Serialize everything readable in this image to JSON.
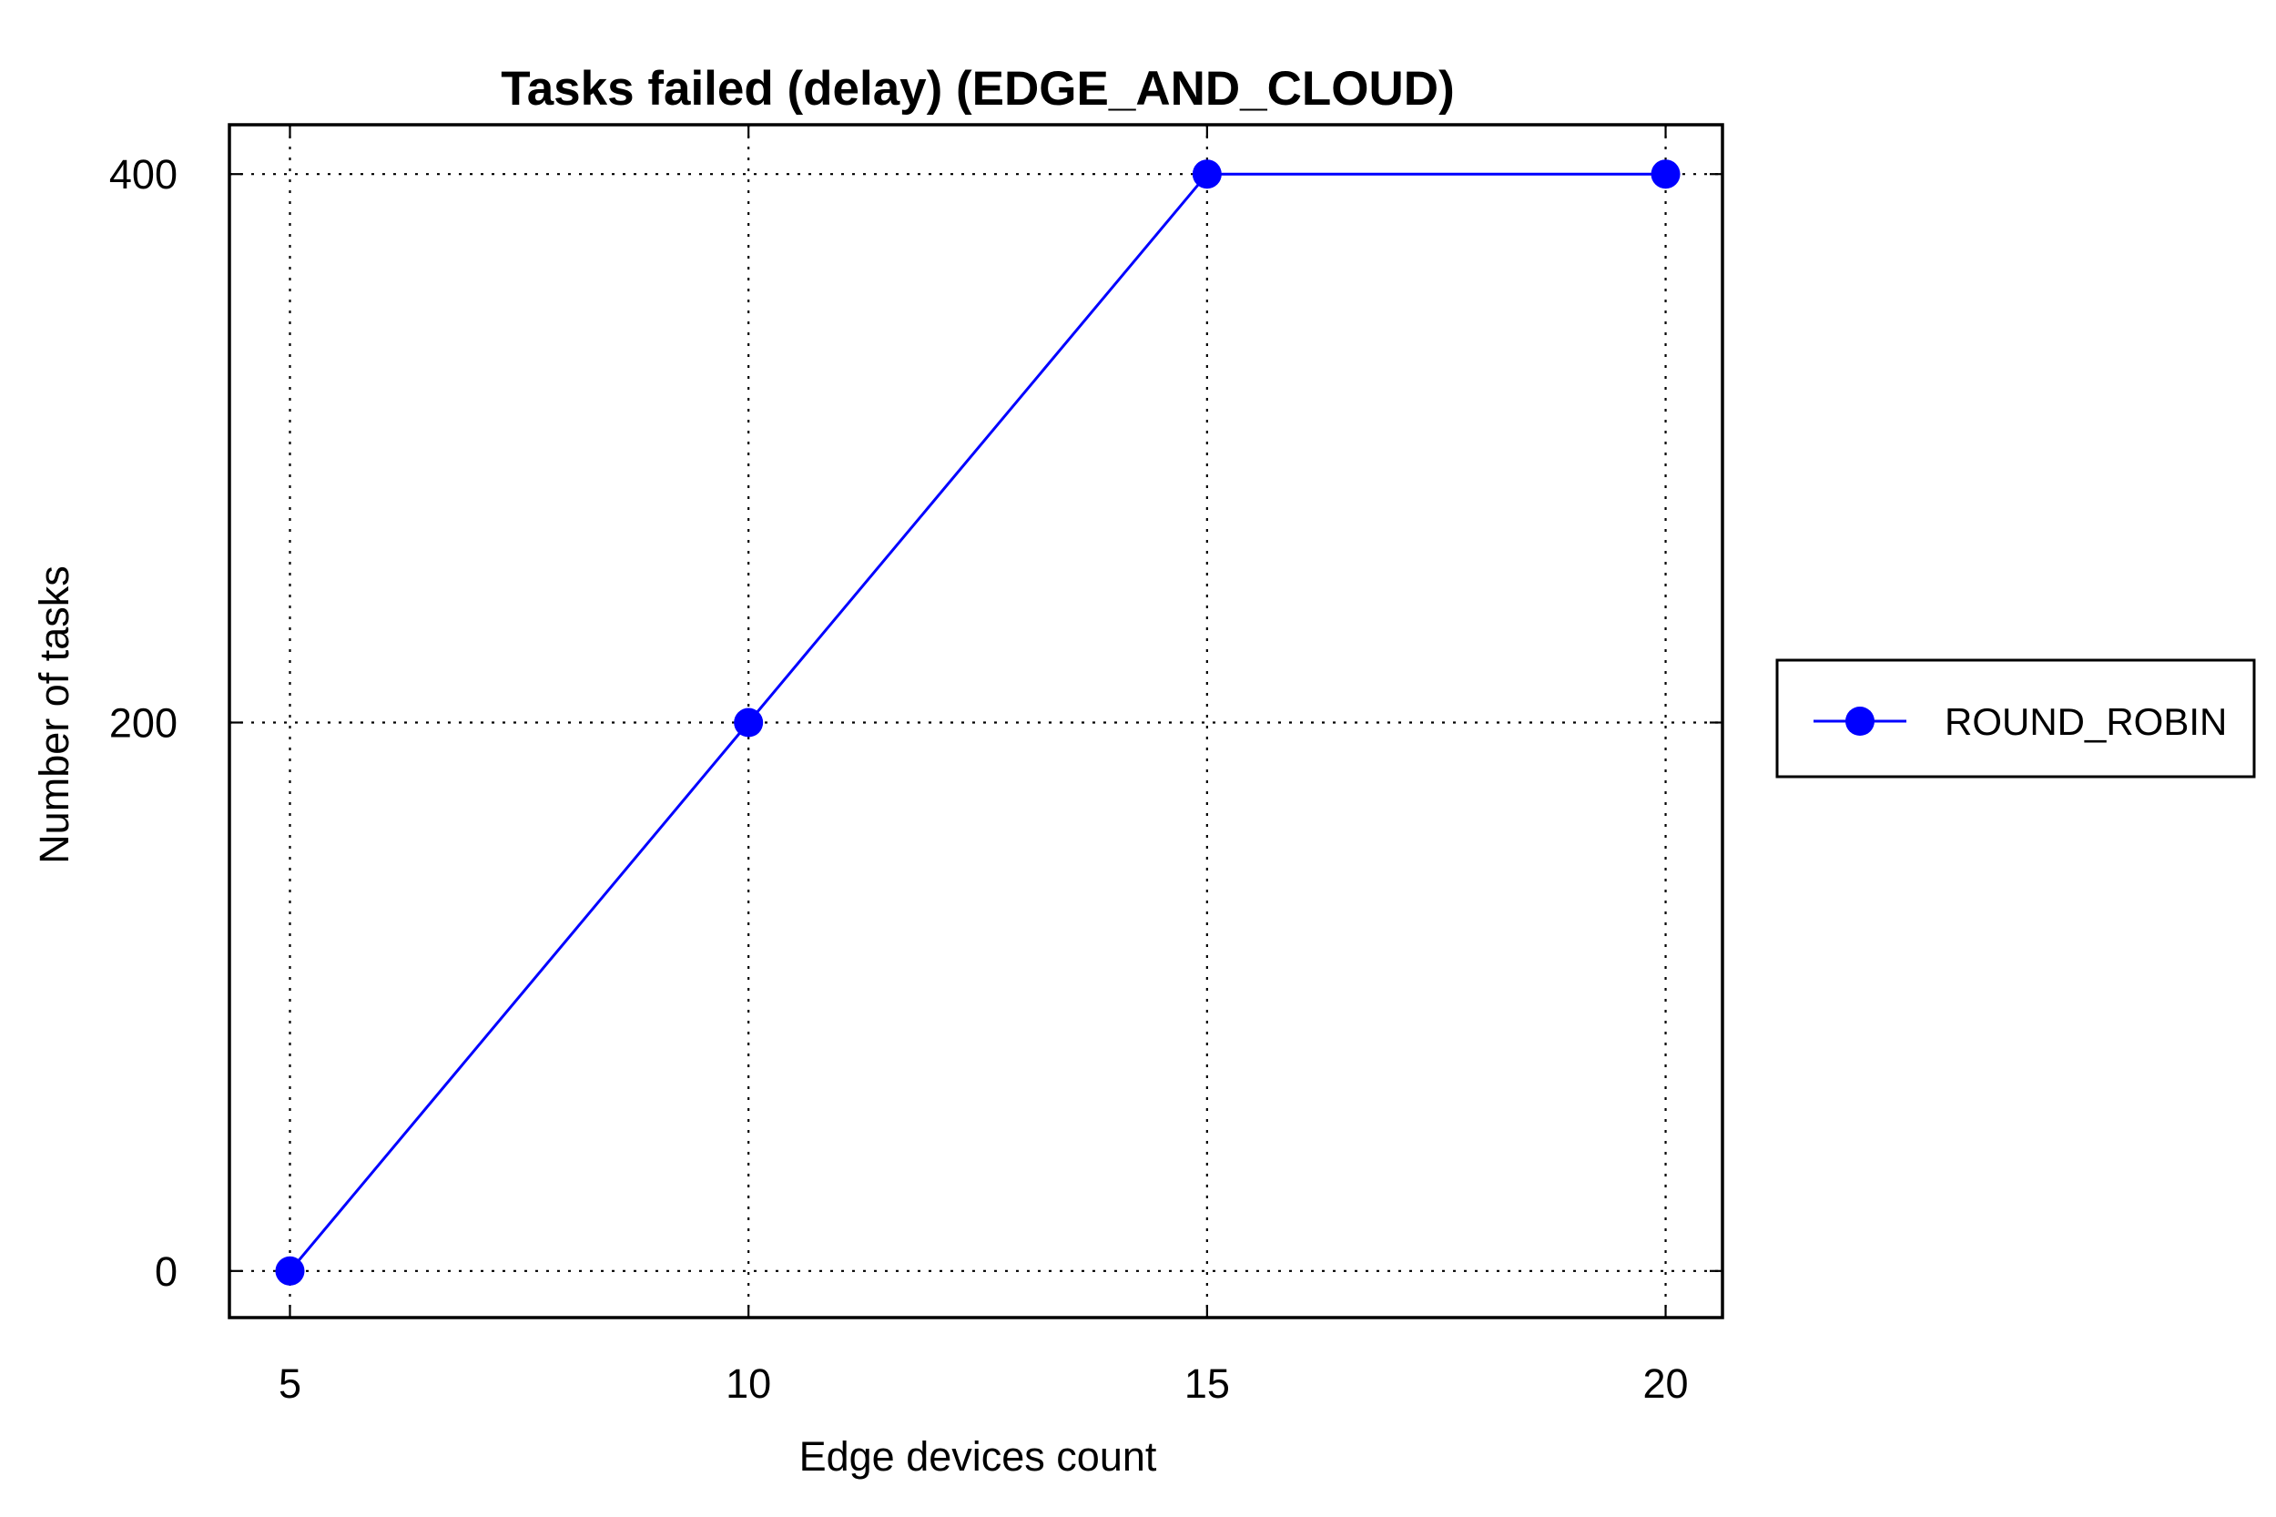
{
  "chart_data": {
    "type": "line",
    "title": "Tasks failed (delay) (EDGE_AND_CLOUD)",
    "xlabel": "Edge devices count",
    "ylabel": "Number of tasks",
    "x": [
      5,
      10,
      15,
      20
    ],
    "xticks": [
      "5",
      "10",
      "15",
      "20"
    ],
    "yticks": [
      "0",
      "200",
      "400"
    ],
    "xlim": [
      4.34,
      20.62
    ],
    "ylim": [
      -17,
      418
    ],
    "grid": true,
    "legend_position": "right, outside plot",
    "series": [
      {
        "name": "ROUND_ROBIN",
        "color": "#0000ff",
        "marker": "circle",
        "values": [
          0,
          200,
          400,
          400
        ]
      }
    ]
  }
}
